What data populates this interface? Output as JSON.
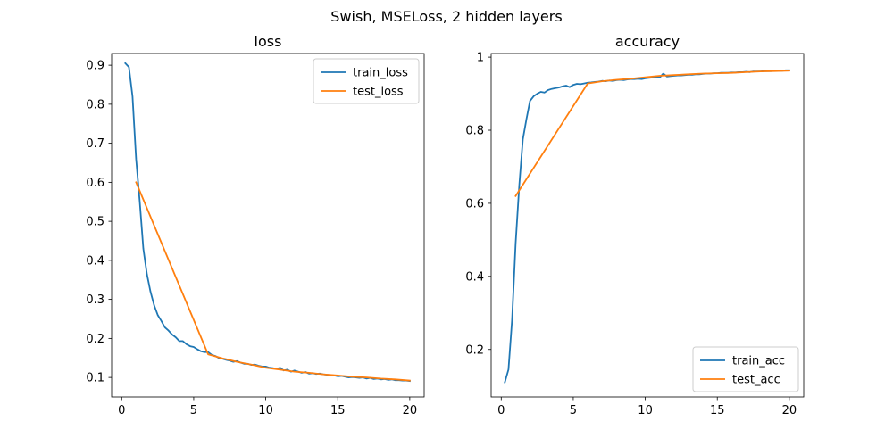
{
  "figure": {
    "suptitle": "Swish, MSELoss, 2 hidden layers"
  },
  "chart_data": [
    {
      "type": "line",
      "title": "loss",
      "xlabel": "",
      "ylabel": "",
      "xlim": [
        -0.7,
        21.0
      ],
      "ylim": [
        0.05,
        0.93
      ],
      "xticks": [
        0,
        5,
        10,
        15,
        20
      ],
      "yticks": [
        0.1,
        0.2,
        0.3,
        0.4,
        0.5,
        0.6,
        0.7,
        0.8,
        0.9
      ],
      "grid": false,
      "legend_position": "upper right",
      "series": [
        {
          "name": "train_loss",
          "color": "#1f77b4",
          "x": [
            0.25,
            0.5,
            0.75,
            1.0,
            1.25,
            1.5,
            1.75,
            2.0,
            2.25,
            2.5,
            2.75,
            3.0,
            3.25,
            3.5,
            3.75,
            4.0,
            4.25,
            4.5,
            4.75,
            5.0,
            5.25,
            5.5,
            5.75,
            6.0,
            6.25,
            6.5,
            6.75,
            7.0,
            7.25,
            7.5,
            7.75,
            8.0,
            8.25,
            8.5,
            8.75,
            9.0,
            9.25,
            9.5,
            9.75,
            10.0,
            10.25,
            10.5,
            10.75,
            11.0,
            11.25,
            11.5,
            11.75,
            12.0,
            12.25,
            12.5,
            12.75,
            13.0,
            13.25,
            13.5,
            13.75,
            14.0,
            14.25,
            14.5,
            14.75,
            15.0,
            15.25,
            15.5,
            15.75,
            16.0,
            16.25,
            16.5,
            16.75,
            17.0,
            17.25,
            17.5,
            17.75,
            18.0,
            18.25,
            18.5,
            18.75,
            19.0,
            19.25,
            19.5,
            19.75,
            20.0
          ],
          "values": [
            0.905,
            0.895,
            0.82,
            0.66,
            0.55,
            0.43,
            0.365,
            0.32,
            0.285,
            0.26,
            0.245,
            0.228,
            0.22,
            0.21,
            0.203,
            0.193,
            0.193,
            0.185,
            0.18,
            0.178,
            0.172,
            0.167,
            0.165,
            0.165,
            0.158,
            0.155,
            0.15,
            0.148,
            0.145,
            0.143,
            0.14,
            0.142,
            0.138,
            0.135,
            0.135,
            0.132,
            0.133,
            0.13,
            0.128,
            0.128,
            0.125,
            0.124,
            0.122,
            0.125,
            0.118,
            0.12,
            0.115,
            0.118,
            0.115,
            0.112,
            0.114,
            0.11,
            0.111,
            0.109,
            0.11,
            0.108,
            0.107,
            0.106,
            0.105,
            0.103,
            0.104,
            0.102,
            0.1,
            0.101,
            0.1,
            0.099,
            0.1,
            0.097,
            0.099,
            0.096,
            0.097,
            0.095,
            0.096,
            0.094,
            0.095,
            0.093,
            0.093,
            0.092,
            0.092,
            0.091
          ]
        },
        {
          "name": "test_loss",
          "color": "#ff7f0e",
          "x": [
            1,
            6,
            7,
            8,
            9,
            10,
            11,
            12,
            13,
            14,
            15,
            16,
            17,
            18,
            19,
            20
          ],
          "values": [
            0.6,
            0.159,
            0.149,
            0.14,
            0.133,
            0.125,
            0.12,
            0.115,
            0.112,
            0.108,
            0.105,
            0.102,
            0.1,
            0.097,
            0.095,
            0.092
          ]
        }
      ]
    },
    {
      "type": "line",
      "title": "accuracy",
      "xlabel": "",
      "ylabel": "",
      "xlim": [
        -0.7,
        21.0
      ],
      "ylim": [
        0.07,
        1.01
      ],
      "xticks": [
        0,
        5,
        10,
        15,
        20
      ],
      "yticks": [
        0.2,
        0.4,
        0.6,
        0.8,
        1.0
      ],
      "grid": false,
      "legend_position": "lower right",
      "series": [
        {
          "name": "train_acc",
          "color": "#1f77b4",
          "x": [
            0.25,
            0.5,
            0.75,
            1.0,
            1.25,
            1.5,
            1.75,
            2.0,
            2.25,
            2.5,
            2.75,
            3.0,
            3.25,
            3.5,
            3.75,
            4.0,
            4.25,
            4.5,
            4.75,
            5.0,
            5.25,
            5.5,
            5.75,
            6.0,
            6.25,
            6.5,
            6.75,
            7.0,
            7.25,
            7.5,
            7.75,
            8.0,
            8.25,
            8.5,
            8.75,
            9.0,
            9.25,
            9.5,
            9.75,
            10.0,
            10.25,
            10.5,
            10.75,
            11.0,
            11.25,
            11.5,
            11.75,
            12.0,
            12.25,
            12.5,
            12.75,
            13.0,
            13.25,
            13.5,
            13.75,
            14.0,
            14.25,
            14.5,
            14.75,
            15.0,
            15.25,
            15.5,
            15.75,
            16.0,
            16.25,
            16.5,
            16.75,
            17.0,
            17.25,
            17.5,
            17.75,
            18.0,
            18.25,
            18.5,
            18.75,
            19.0,
            19.25,
            19.5,
            19.75,
            20.0
          ],
          "values": [
            0.11,
            0.145,
            0.28,
            0.49,
            0.65,
            0.775,
            0.83,
            0.88,
            0.893,
            0.9,
            0.905,
            0.903,
            0.91,
            0.913,
            0.915,
            0.917,
            0.92,
            0.922,
            0.918,
            0.924,
            0.927,
            0.926,
            0.928,
            0.93,
            0.931,
            0.932,
            0.933,
            0.935,
            0.934,
            0.936,
            0.935,
            0.937,
            0.938,
            0.937,
            0.939,
            0.94,
            0.94,
            0.941,
            0.94,
            0.942,
            0.943,
            0.944,
            0.945,
            0.944,
            0.955,
            0.947,
            0.948,
            0.949,
            0.95,
            0.95,
            0.951,
            0.952,
            0.952,
            0.953,
            0.953,
            0.954,
            0.955,
            0.955,
            0.956,
            0.956,
            0.957,
            0.957,
            0.957,
            0.958,
            0.958,
            0.959,
            0.959,
            0.96,
            0.959,
            0.961,
            0.961,
            0.961,
            0.962,
            0.962,
            0.962,
            0.963,
            0.963,
            0.963,
            0.964,
            0.964
          ]
        },
        {
          "name": "test_acc",
          "color": "#ff7f0e",
          "x": [
            1,
            6,
            7,
            8,
            9,
            10,
            11,
            12,
            13,
            14,
            15,
            16,
            17,
            18,
            19,
            20
          ],
          "values": [
            0.62,
            0.928,
            0.934,
            0.938,
            0.941,
            0.945,
            0.949,
            0.951,
            0.953,
            0.955,
            0.956,
            0.957,
            0.959,
            0.961,
            0.962,
            0.963
          ]
        }
      ]
    }
  ]
}
